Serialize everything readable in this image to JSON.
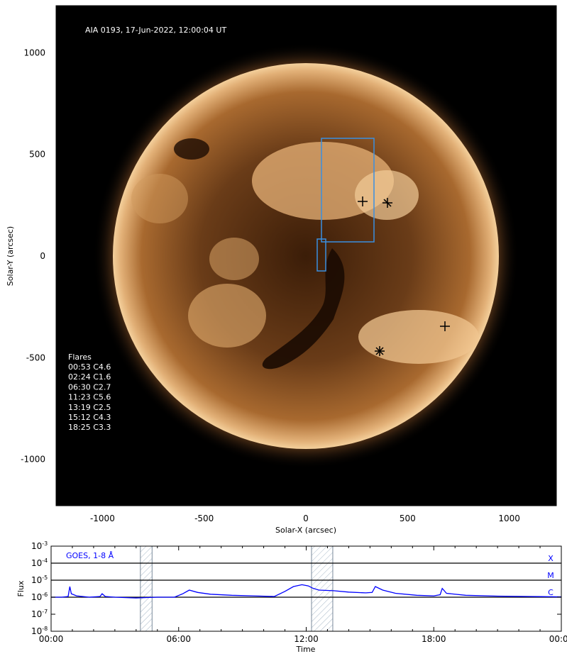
{
  "image": {
    "title": "AIA 0193, 17-Jun-2022, 12:00:04 UT",
    "xlabel": "Solar-X (arcsec)",
    "ylabel": "Solar-Y (arcsec)",
    "xticks": [
      "-1000",
      "-500",
      "0",
      "500",
      "1000"
    ],
    "yticks": [
      "1000",
      "500",
      "0",
      "-500",
      "-1000"
    ],
    "flares_heading": "Flares",
    "flares": [
      "00:53 C4.6",
      "02:24 C1.6",
      "06:30 C2.7",
      "11:23 C5.6",
      "13:19 C2.5",
      "15:12 C4.3",
      "18:25 C3.3"
    ],
    "colors": {
      "sun_core": "#3b1d08",
      "sun_mid": "#8a5226",
      "sun_limb": "#f0c68e",
      "box": "#3a8fe0",
      "background": "#000000"
    }
  },
  "chart_data": {
    "type": "line",
    "title": "GOES, 1-8 Å",
    "xlabel": "Time",
    "ylabel": "Flux",
    "yscale": "log",
    "ylim": [
      1e-08,
      0.001
    ],
    "xlim_hours": [
      0,
      24
    ],
    "x_tick_labels": [
      "00:00",
      "06:00",
      "12:00",
      "18:00",
      "00:00"
    ],
    "y_tick_labels": [
      {
        "base": "10",
        "exp": "-8"
      },
      {
        "base": "10",
        "exp": "-7"
      },
      {
        "base": "10",
        "exp": "-6"
      },
      {
        "base": "10",
        "exp": "-5"
      },
      {
        "base": "10",
        "exp": "-4"
      },
      {
        "base": "10",
        "exp": "-3"
      }
    ],
    "class_lines": [
      {
        "label": "X",
        "flux": 0.0001
      },
      {
        "label": "M",
        "flux": 1e-05
      },
      {
        "label": "C",
        "flux": 1e-06
      }
    ],
    "shaded_intervals_hours": [
      [
        4.2,
        4.75
      ],
      [
        12.25,
        13.25
      ]
    ],
    "series": [
      {
        "color": "#0000ff",
        "points": [
          [
            0.0,
            1e-06
          ],
          [
            0.5,
            1e-06
          ],
          [
            0.8,
            1.1e-06
          ],
          [
            0.88,
            4.2e-06
          ],
          [
            0.95,
            1.6e-06
          ],
          [
            1.2,
            1.2e-06
          ],
          [
            1.8,
            1e-06
          ],
          [
            2.3,
            1.1e-06
          ],
          [
            2.4,
            1.6e-06
          ],
          [
            2.55,
            1.1e-06
          ],
          [
            3.0,
            1e-06
          ],
          [
            4.0,
            9e-07
          ],
          [
            4.5,
            9.5e-07
          ],
          [
            5.0,
            1e-06
          ],
          [
            5.8,
            1e-06
          ],
          [
            6.2,
            1.6e-06
          ],
          [
            6.5,
            2.6e-06
          ],
          [
            6.9,
            1.9e-06
          ],
          [
            7.5,
            1.5e-06
          ],
          [
            8.5,
            1.3e-06
          ],
          [
            9.5,
            1.2e-06
          ],
          [
            10.5,
            1.1e-06
          ],
          [
            11.0,
            2.2e-06
          ],
          [
            11.4,
            4.2e-06
          ],
          [
            11.8,
            5.4e-06
          ],
          [
            12.1,
            4.6e-06
          ],
          [
            12.3,
            3.4e-06
          ],
          [
            12.6,
            2.6e-06
          ],
          [
            13.3,
            2.4e-06
          ],
          [
            14.0,
            2e-06
          ],
          [
            14.8,
            1.8e-06
          ],
          [
            15.1,
            1.9e-06
          ],
          [
            15.25,
            4.2e-06
          ],
          [
            15.6,
            2.6e-06
          ],
          [
            16.2,
            1.7e-06
          ],
          [
            17.2,
            1.3e-06
          ],
          [
            18.0,
            1.2e-06
          ],
          [
            18.3,
            1.4e-06
          ],
          [
            18.4,
            3.3e-06
          ],
          [
            18.6,
            1.7e-06
          ],
          [
            19.5,
            1.3e-06
          ],
          [
            21.0,
            1.15e-06
          ],
          [
            22.5,
            1.1e-06
          ],
          [
            24.0,
            1.05e-06
          ]
        ]
      }
    ]
  },
  "goes_label": "GOES, 1-8 Å",
  "goes_xlabel": "Time",
  "goes_ylabel": "Flux"
}
